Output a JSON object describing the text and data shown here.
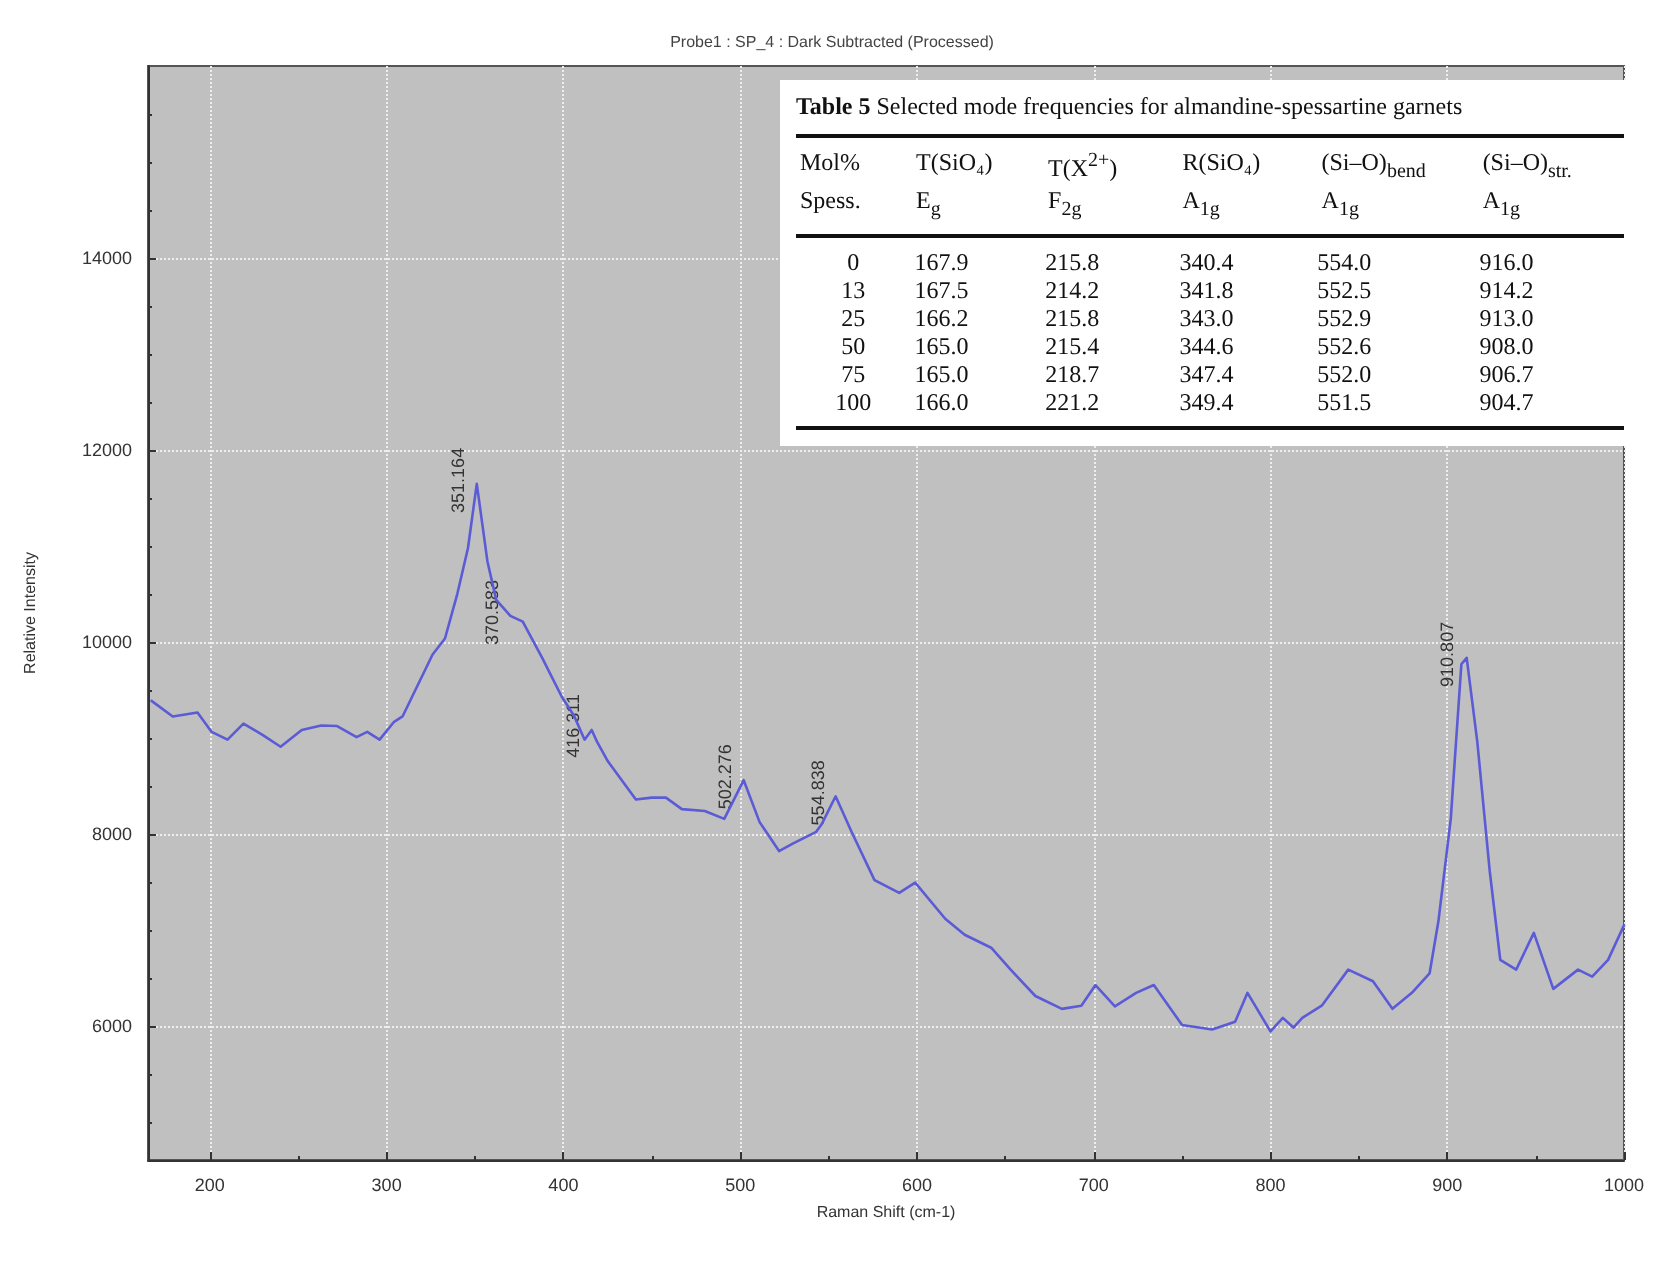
{
  "chart_data": [
    {
      "type": "line",
      "title": "Probe1 : SP_4 : Dark Subtracted (Processed)",
      "xlabel": "Raman Shift (cm-1)",
      "ylabel": "Relative Intensity",
      "series": [
        {
          "color": "#5b5bd6",
          "x": [
            167,
            179,
            186,
            193,
            201,
            210,
            219,
            230,
            240,
            252,
            263,
            272,
            283,
            289,
            296,
            304,
            309,
            326,
            333,
            340,
            346,
            351,
            357,
            362,
            370,
            377,
            388,
            399,
            406,
            412,
            416,
            419,
            425,
            441,
            450,
            458,
            467,
            480,
            491,
            502,
            511,
            522,
            530,
            543,
            546,
            554,
            563,
            576,
            590,
            599,
            616,
            627,
            642,
            653,
            667,
            682,
            693,
            701,
            712,
            724,
            734,
            750,
            767,
            780,
            787,
            800,
            807,
            813,
            818,
            829,
            844,
            858,
            869,
            880,
            890,
            895,
            902,
            908,
            911,
            917,
            924,
            930,
            939,
            949,
            960,
            974,
            982,
            991,
            1000
          ],
          "values": [
            9384,
            9222,
            9243,
            9263,
            9061,
            8980,
            9148,
            9027,
            8906,
            9081,
            9128,
            9122,
            9007,
            9061,
            8980,
            9162,
            9222,
            9867,
            10034,
            10500,
            10975,
            11646,
            10840,
            10437,
            10270,
            10210,
            9833,
            9430,
            9229,
            8980,
            9081,
            8960,
            8759,
            8356,
            8376,
            8376,
            8256,
            8236,
            8155,
            8558,
            8121,
            7819,
            7900,
            8020,
            8095,
            8390,
            8020,
            7517,
            7383,
            7490,
            7114,
            6947,
            6812,
            6584,
            6309,
            6175,
            6208,
            6423,
            6201,
            6342,
            6423,
            6007,
            5960,
            6040,
            6342,
            5940,
            6081,
            5980,
            6081,
            6208,
            6584,
            6463,
            6175,
            6342,
            6544,
            7087,
            8155,
            9766,
            9833,
            8960,
            7617,
            6685,
            6584,
            6967,
            6383,
            6584,
            6510,
            6685,
            7047
          ]
        }
      ],
      "annotations": [
        {
          "text": "351.164",
          "x": 351.164,
          "y": 11646
        },
        {
          "text": "370.583",
          "x": 370.583,
          "y": 10270
        },
        {
          "text": "416.311",
          "x": 416.311,
          "y": 9081
        },
        {
          "text": "502.276",
          "x": 502.276,
          "y": 8558
        },
        {
          "text": "554.838",
          "x": 554.838,
          "y": 8390
        },
        {
          "text": "910.807",
          "x": 910.807,
          "y": 9833
        }
      ],
      "xlim": [
        165,
        1000
      ],
      "xticks": [
        200,
        300,
        400,
        500,
        600,
        700,
        800,
        900,
        1000
      ],
      "ylim": [
        4600,
        16000
      ],
      "yticks": [
        6000,
        8000,
        10000,
        12000,
        14000
      ],
      "grid": true,
      "marker": "none",
      "line_style": "solid"
    },
    {
      "type": "other",
      "title": "Table 5 Selected mode frequencies for almandine-spessartine garnets",
      "annotations": [
        "Mol%",
        "T(SiO₄)",
        "T(X$^{2+}$)",
        "R(SiO₄)",
        "(Si–O)$_{bend}$",
        "(Si–O)$_{str.}$",
        "Spess.",
        "E$_{g}$",
        "F$_{2g}$",
        "A$_{1g}$",
        "A$_{1g}$",
        "A$_{1g}$",
        "0",
        "167.9",
        "215.8",
        "340.4",
        "554.0",
        "916.0",
        "13",
        "167.5",
        "214.2",
        "341.8",
        "552.5",
        "914.2",
        "25",
        "166.2",
        "215.8",
        "343.0",
        "552.9",
        "913.0",
        "50",
        "165.0",
        "215.4",
        "344.6",
        "552.6",
        "908.0",
        "75",
        "165.0",
        "218.7",
        "347.4",
        "552.0",
        "906.7",
        "100",
        "166.0",
        "221.2",
        "349.4",
        "551.5",
        "904.7"
      ]
    }
  ]
}
